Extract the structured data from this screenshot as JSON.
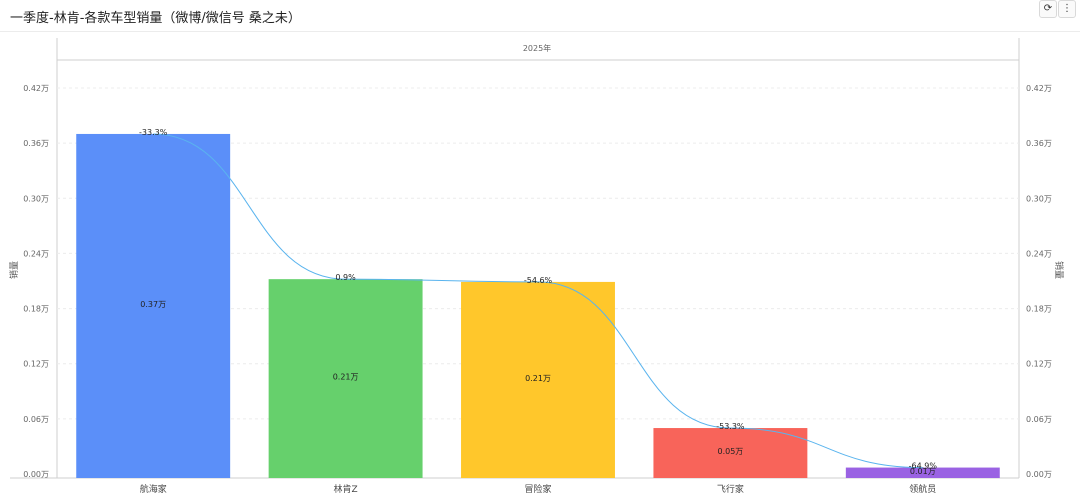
{
  "header": {
    "title": "一季度-林肯-各款车型销量（微博/微信号 桑之未）",
    "refresh_icon": "refresh-icon",
    "more_icon": "more-vertical-icon"
  },
  "chart_data": {
    "type": "bar",
    "title": "一季度-林肯-各款车型销量（微博/微信号 桑之未）",
    "facet_label": "2025年",
    "ylabel": "销量",
    "ylabel_right": "销量",
    "ylim": [
      0,
      0.42
    ],
    "yticks": [
      0,
      0.06,
      0.12,
      0.18,
      0.24,
      0.3,
      0.36,
      0.42
    ],
    "ytick_labels": [
      "0.00万",
      "0.06万",
      "0.12万",
      "0.18万",
      "0.24万",
      "0.30万",
      "0.36万",
      "0.42万"
    ],
    "categories": [
      "航海家",
      "林肯Z",
      "冒险家",
      "飞行家",
      "领航员"
    ],
    "values": [
      0.37,
      0.212,
      0.209,
      0.05,
      0.007
    ],
    "value_labels": [
      "0.37万",
      "0.21万",
      "0.21万",
      "0.05万",
      "0.01万"
    ],
    "colors": [
      "#5b8ff9",
      "#66d06c",
      "#ffc72b",
      "#f8645a",
      "#9a62e3"
    ],
    "line": {
      "type": "line",
      "smooth": true,
      "color": "#5ab4ee",
      "labels": [
        "-33.3%",
        "0.9%",
        "-54.6%",
        "-53.3%",
        "-64.9%"
      ]
    },
    "grid": true
  }
}
